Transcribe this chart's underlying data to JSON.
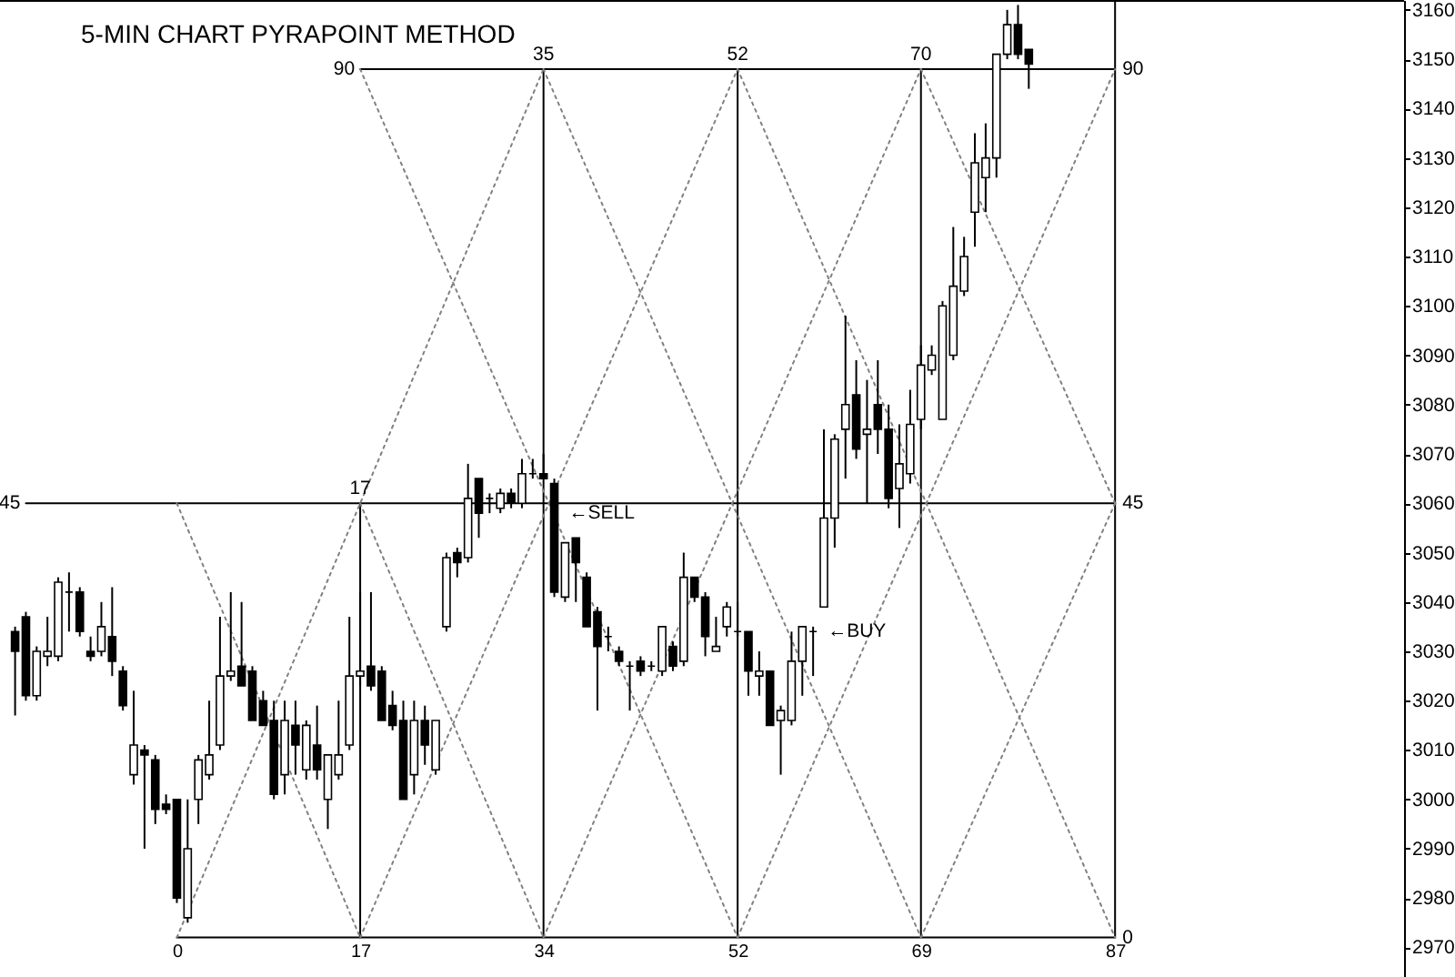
{
  "chart_data": {
    "type": "candlestick",
    "title": "5-MIN CHART PYRAPOINT METHOD",
    "x": [
      -15,
      -14,
      -13,
      -12,
      -11,
      -10,
      -9,
      -8,
      -7,
      -6,
      -5,
      -4,
      -3,
      -2,
      -1,
      0,
      1,
      2,
      3,
      4,
      5,
      6,
      7,
      8,
      9,
      10,
      11,
      12,
      13,
      14,
      15,
      16,
      17,
      18,
      19,
      20,
      21,
      22,
      23,
      24,
      25,
      26,
      27,
      28,
      29,
      30,
      31,
      32,
      33,
      34,
      35,
      36,
      37,
      38,
      39,
      40,
      41,
      42,
      43,
      44,
      45,
      46,
      47,
      48,
      49,
      50,
      51,
      52,
      53,
      54,
      55,
      56,
      57,
      58,
      59,
      60,
      61,
      62,
      63,
      64,
      65,
      66,
      67,
      68,
      69,
      70,
      71,
      72,
      73,
      74,
      75,
      76,
      77,
      78,
      79
    ],
    "ohlc": [
      [
        3034,
        3035,
        3017,
        3030
      ],
      [
        3037,
        3038,
        3020,
        3021
      ],
      [
        3021,
        3031,
        3020,
        3030
      ],
      [
        3029,
        3037,
        3027,
        3030
      ],
      [
        3029,
        3045,
        3028,
        3044
      ],
      [
        3042,
        3046,
        3034,
        3042
      ],
      [
        3042,
        3043,
        3033,
        3034
      ],
      [
        3030,
        3033,
        3028,
        3029
      ],
      [
        3030,
        3040,
        3029,
        3035
      ],
      [
        3033,
        3043,
        3025,
        3028
      ],
      [
        3026,
        3027,
        3018,
        3019
      ],
      [
        3005,
        3022,
        3003,
        3011
      ],
      [
        3010,
        3011,
        2990,
        3009
      ],
      [
        3008,
        3009,
        2995,
        2998
      ],
      [
        2999,
        3001,
        2997,
        2998
      ],
      [
        3000,
        3000,
        2979,
        2980
      ],
      [
        2976,
        3000,
        2975,
        2990
      ],
      [
        3000,
        3009,
        2995,
        3008
      ],
      [
        3005,
        3020,
        3004,
        3009
      ],
      [
        3011,
        3037,
        3010,
        3025
      ],
      [
        3025,
        3042,
        3024,
        3026
      ],
      [
        3027,
        3040,
        3023,
        3023
      ],
      [
        3026,
        3027,
        3016,
        3016
      ],
      [
        3020,
        3022,
        3015,
        3015
      ],
      [
        3016,
        3020,
        3000,
        3001
      ],
      [
        3005,
        3020,
        3001,
        3016
      ],
      [
        3015,
        3020,
        3005,
        3011
      ],
      [
        3006,
        3016,
        3004,
        3015
      ],
      [
        3011,
        3019,
        3004,
        3006
      ],
      [
        3000,
        3009,
        2994,
        3009
      ],
      [
        3005,
        3020,
        3004,
        3009
      ],
      [
        3011,
        3037,
        3010,
        3025
      ],
      [
        3025,
        3042,
        3023,
        3026
      ],
      [
        3027,
        3042,
        3022,
        3023
      ],
      [
        3026,
        3027,
        3016,
        3016
      ],
      [
        3019,
        3022,
        3014,
        3015
      ],
      [
        3016,
        3020,
        3000,
        3000
      ],
      [
        3005,
        3020,
        3001,
        3016
      ],
      [
        3016,
        3019,
        3007,
        3011
      ],
      [
        3006,
        3016,
        3005,
        3016
      ],
      [
        3035,
        3050,
        3034,
        3049
      ],
      [
        3050,
        3051,
        3045,
        3048
      ],
      [
        3049,
        3068,
        3048,
        3061
      ],
      [
        3065,
        3065,
        3053,
        3058
      ],
      [
        3061,
        3062,
        3058,
        3061
      ],
      [
        3059,
        3063,
        3058,
        3062
      ],
      [
        3062,
        3063,
        3059,
        3060
      ],
      [
        3060,
        3069,
        3059,
        3066
      ],
      [
        3066,
        3069,
        3065,
        3066
      ],
      [
        3066,
        3070,
        3065,
        3065
      ],
      [
        3064,
        3065,
        3041,
        3042
      ],
      [
        3041,
        3052,
        3040,
        3052
      ],
      [
        3053,
        3053,
        3040,
        3048
      ],
      [
        3045,
        3046,
        3035,
        3035
      ],
      [
        3038,
        3039,
        3018,
        3031
      ],
      [
        3033,
        3035,
        3030,
        3033
      ],
      [
        3030,
        3031,
        3027,
        3028
      ],
      [
        3027,
        3028,
        3018,
        3027
      ],
      [
        3028,
        3029,
        3025,
        3026
      ],
      [
        3027,
        3028,
        3026,
        3027
      ],
      [
        3026,
        3035,
        3025,
        3035
      ],
      [
        3031,
        3032,
        3026,
        3027
      ],
      [
        3028,
        3050,
        3027,
        3045
      ],
      [
        3045,
        3045,
        3040,
        3041
      ],
      [
        3041,
        3042,
        3029,
        3033
      ],
      [
        3030,
        3037,
        3030,
        3031
      ],
      [
        3035,
        3040,
        3033,
        3039
      ],
      [
        3034,
        3040,
        3033,
        3034
      ],
      [
        3034,
        3034,
        3021,
        3026
      ],
      [
        3025,
        3030,
        3021,
        3026
      ],
      [
        3026,
        3026,
        3015,
        3015
      ],
      [
        3016,
        3019,
        3005,
        3018
      ],
      [
        3016,
        3034,
        3015,
        3028
      ],
      [
        3028,
        3035,
        3021,
        3035
      ],
      [
        3034,
        3035,
        3025,
        3034
      ],
      [
        3039,
        3075,
        3039,
        3057
      ],
      [
        3057,
        3074,
        3051,
        3073
      ],
      [
        3075,
        3098,
        3065,
        3080
      ],
      [
        3082,
        3089,
        3069,
        3071
      ],
      [
        3074,
        3085,
        3060,
        3075
      ],
      [
        3080,
        3089,
        3070,
        3075
      ],
      [
        3075,
        3080,
        3059,
        3061
      ],
      [
        3063,
        3076,
        3055,
        3068
      ],
      [
        3066,
        3083,
        3064,
        3076
      ],
      [
        3077,
        3092,
        3075,
        3088
      ],
      [
        3087,
        3092,
        3086,
        3090
      ],
      [
        3077,
        3101,
        3077,
        3100
      ],
      [
        3090,
        3116,
        3089,
        3104
      ],
      [
        3103,
        3114,
        3102,
        3110
      ],
      [
        3119,
        3135,
        3112,
        3129
      ],
      [
        3126,
        3137,
        3119,
        3130
      ],
      [
        3130,
        3151,
        3126,
        3151
      ],
      [
        3151,
        3160,
        3150,
        3157
      ],
      [
        3157,
        3161,
        3150,
        3151
      ],
      [
        3152,
        3152,
        3144,
        3149
      ]
    ],
    "color": "#000000",
    "series": [
      {
        "type": "line",
        "color": "#000000",
        "line_style": "solid",
        "x": [
          0,
          87
        ],
        "values": [
          2972,
          2972
        ]
      },
      {
        "type": "line",
        "color": "#000000",
        "line_style": "solid",
        "x": [
          -14,
          87
        ],
        "values": [
          3060,
          3060
        ]
      },
      {
        "type": "line",
        "color": "#000000",
        "line_style": "solid",
        "x": [
          17,
          87
        ],
        "values": [
          3148,
          3148
        ]
      },
      {
        "type": "line",
        "color": "#000000",
        "line_style": "solid",
        "x": [
          17,
          17
        ],
        "values": [
          2972,
          3060
        ]
      },
      {
        "type": "line",
        "color": "#000000",
        "line_style": "solid",
        "x": [
          34,
          34
        ],
        "values": [
          2972,
          3148
        ]
      },
      {
        "type": "line",
        "color": "#000000",
        "line_style": "solid",
        "x": [
          52,
          52
        ],
        "values": [
          2972,
          3148
        ]
      },
      {
        "type": "line",
        "color": "#000000",
        "line_style": "solid",
        "x": [
          69,
          69
        ],
        "values": [
          2972,
          3148
        ]
      },
      {
        "type": "line",
        "color": "#000000",
        "line_style": "solid",
        "x": [
          87,
          87
        ],
        "values": [
          2972,
          3162
        ]
      },
      {
        "type": "line",
        "color": "#808080",
        "line_style": "dotted",
        "x": [
          0,
          34
        ],
        "values": [
          2972,
          3148
        ]
      },
      {
        "type": "line",
        "color": "#808080",
        "line_style": "dotted",
        "x": [
          17,
          52
        ],
        "values": [
          2972,
          3148
        ]
      },
      {
        "type": "line",
        "color": "#808080",
        "line_style": "dotted",
        "x": [
          34,
          69
        ],
        "values": [
          2972,
          3148
        ]
      },
      {
        "type": "line",
        "color": "#808080",
        "line_style": "dotted",
        "x": [
          52,
          87
        ],
        "values": [
          2972,
          3148
        ]
      },
      {
        "type": "line",
        "color": "#808080",
        "line_style": "dotted",
        "x": [
          69,
          87
        ],
        "values": [
          2972,
          3060
        ]
      },
      {
        "type": "line",
        "color": "#808080",
        "line_style": "dotted",
        "x": [
          0,
          17
        ],
        "values": [
          3060,
          2972
        ]
      },
      {
        "type": "line",
        "color": "#808080",
        "line_style": "dotted",
        "x": [
          17,
          34
        ],
        "values": [
          3060,
          2972
        ]
      },
      {
        "type": "line",
        "color": "#808080",
        "line_style": "dotted",
        "x": [
          17,
          52
        ],
        "values": [
          3148,
          2972
        ]
      },
      {
        "type": "line",
        "color": "#808080",
        "line_style": "dotted",
        "x": [
          34,
          69
        ],
        "values": [
          3148,
          2972
        ]
      },
      {
        "type": "line",
        "color": "#808080",
        "line_style": "dotted",
        "x": [
          52,
          87
        ],
        "values": [
          3148,
          2972
        ]
      },
      {
        "type": "line",
        "color": "#808080",
        "line_style": "dotted",
        "x": [
          69,
          87
        ],
        "values": [
          3148,
          3060
        ]
      }
    ],
    "xlim": [
      -16.4,
      113.8
    ],
    "ylim": [
      2964,
      3162
    ],
    "xticks": [
      0,
      17,
      34,
      52,
      69,
      87
    ],
    "yticks": [
      2970,
      2980,
      2990,
      3000,
      3010,
      3020,
      3030,
      3040,
      3050,
      3060,
      3070,
      3080,
      3090,
      3100,
      3110,
      3120,
      3130,
      3140,
      3150,
      3160
    ],
    "annotations": [
      {
        "text": "90",
        "x": 17,
        "y": 3148
      },
      {
        "text": "35",
        "x": 34,
        "y": 3148
      },
      {
        "text": "52",
        "x": 52,
        "y": 3148
      },
      {
        "text": "70",
        "x": 69,
        "y": 3148
      },
      {
        "text": "90",
        "x": 87,
        "y": 3148
      },
      {
        "text": "45",
        "x": -14,
        "y": 3060
      },
      {
        "text": "17",
        "x": 17,
        "y": 3060
      },
      {
        "text": "45",
        "x": 87,
        "y": 3060
      },
      {
        "text": "0",
        "x": 87,
        "y": 2972
      },
      {
        "text": "←SELL",
        "x": 35,
        "y": 3058
      },
      {
        "text": "←BUY",
        "x": 59,
        "y": 3034
      }
    ]
  }
}
